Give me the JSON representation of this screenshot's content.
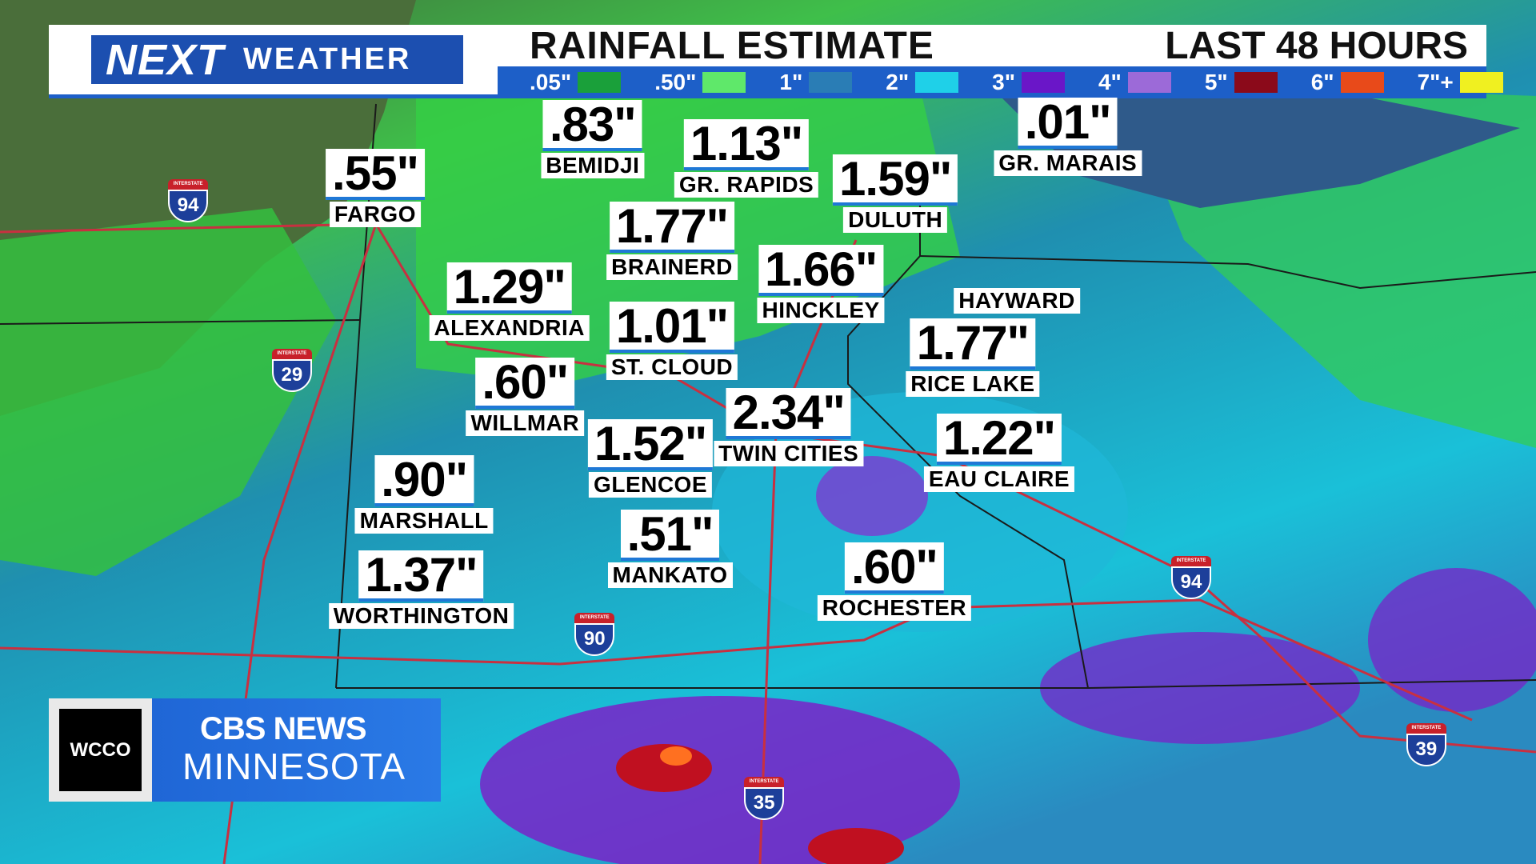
{
  "header": {
    "brand": "NEXT",
    "brand_sub": "WEATHER",
    "title": "RAINFALL ESTIMATE",
    "subtitle": "LAST 48 HOURS"
  },
  "legend": [
    {
      "label": ".05\"",
      "color": "#1aa03a"
    },
    {
      "label": ".50\"",
      "color": "#5fe86a"
    },
    {
      "label": "1\"",
      "color": "#2a7db5"
    },
    {
      "label": "2\"",
      "color": "#1fd0e8"
    },
    {
      "label": "3\"",
      "color": "#6a16c8"
    },
    {
      "label": "4\"",
      "color": "#9c6ad8"
    },
    {
      "label": "5\"",
      "color": "#8b0a1a"
    },
    {
      "label": "6\"",
      "color": "#e84a1a"
    },
    {
      "label": "7\"+",
      "color": "#f0f020"
    }
  ],
  "cities": [
    {
      "value": ".55\"",
      "name": "FARGO"
    },
    {
      "value": ".83\"",
      "name": "BEMIDJI"
    },
    {
      "value": "1.13\"",
      "name": "GR. RAPIDS"
    },
    {
      "value": "1.59\"",
      "name": "DULUTH"
    },
    {
      "value": ".01\"",
      "name": "GR. MARAIS"
    },
    {
      "value": "1.77\"",
      "name": "BRAINERD"
    },
    {
      "value": "1.29\"",
      "name": "ALEXANDRIA"
    },
    {
      "value": "1.66\"",
      "name": "HINCKLEY"
    },
    {
      "value": "1.01\"",
      "name": "ST. CLOUD"
    },
    {
      "name": "HAYWARD"
    },
    {
      "value": "1.77\"",
      "name": "RICE LAKE"
    },
    {
      "value": ".60\"",
      "name": "WILLMAR"
    },
    {
      "value": "2.34\"",
      "name": "TWIN CITIES"
    },
    {
      "value": "1.52\"",
      "name": "GLENCOE"
    },
    {
      "value": "1.22\"",
      "name": "EAU CLAIRE"
    },
    {
      "value": ".90\"",
      "name": "MARSHALL"
    },
    {
      "value": ".51\"",
      "name": "MANKATO"
    },
    {
      "value": ".60\"",
      "name": "ROCHESTER"
    },
    {
      "value": "1.37\"",
      "name": "WORTHINGTON"
    }
  ],
  "shields": [
    {
      "top": "INTERSTATE",
      "number": "94"
    },
    {
      "top": "INTERSTATE",
      "number": "29"
    },
    {
      "top": "INTERSTATE",
      "number": "90"
    },
    {
      "top": "INTERSTATE",
      "number": "94"
    },
    {
      "top": "INTERSTATE",
      "number": "39"
    },
    {
      "top": "INTERSTATE",
      "number": "35"
    }
  ],
  "logo": {
    "station": "WCCO",
    "network": "CBS NEWS",
    "region": "MINNESOTA"
  }
}
